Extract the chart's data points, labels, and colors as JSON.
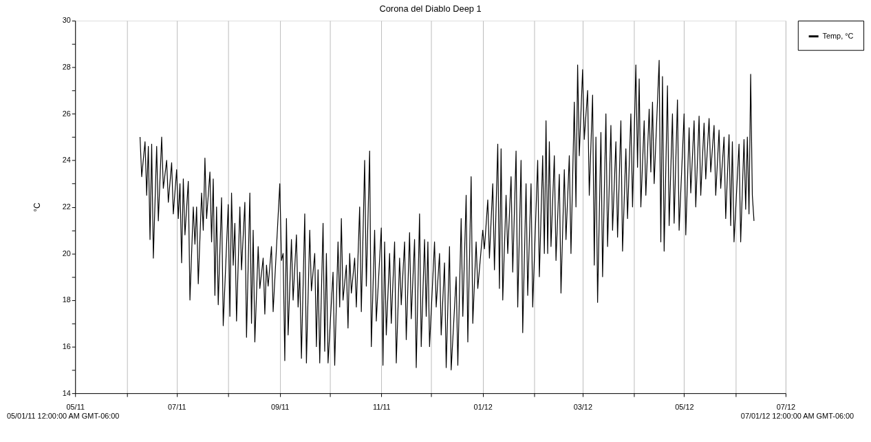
{
  "chart_data": {
    "type": "line",
    "title": "Corona del Diablo Deep 1",
    "ylabel": "°C",
    "x": [
      "2011-06-09",
      "2011-06-10",
      "2011-06-12",
      "2011-06-13",
      "2011-06-14",
      "2011-06-15",
      "2011-06-16",
      "2011-06-17",
      "2011-06-19",
      "2011-06-20",
      "2011-06-22",
      "2011-06-23",
      "2011-06-25",
      "2011-06-26",
      "2011-06-28",
      "2011-06-29",
      "2011-07-01",
      "2011-07-02",
      "2011-07-03",
      "2011-07-04",
      "2011-07-05",
      "2011-07-06",
      "2011-07-08",
      "2011-07-09",
      "2011-07-11",
      "2011-07-12",
      "2011-07-13",
      "2011-07-14",
      "2011-07-16",
      "2011-07-17",
      "2011-07-18",
      "2011-07-19",
      "2011-07-21",
      "2011-07-22",
      "2011-07-23",
      "2011-07-24",
      "2011-07-25",
      "2011-07-26",
      "2011-07-28",
      "2011-07-29",
      "2011-08-01",
      "2011-08-02",
      "2011-08-03",
      "2011-08-04",
      "2011-08-05",
      "2011-08-06",
      "2011-08-08",
      "2011-08-09",
      "2011-08-11",
      "2011-08-12",
      "2011-08-14",
      "2011-08-15",
      "2011-08-16",
      "2011-08-17",
      "2011-08-19",
      "2011-08-20",
      "2011-08-22",
      "2011-08-23",
      "2011-08-24",
      "2011-08-25",
      "2011-08-27",
      "2011-08-28",
      "2011-09-01",
      "2011-09-02",
      "2011-09-03",
      "2011-09-04",
      "2011-09-05",
      "2011-09-06",
      "2011-09-08",
      "2011-09-09",
      "2011-09-11",
      "2011-09-12",
      "2011-09-13",
      "2011-09-14",
      "2011-09-16",
      "2011-09-17",
      "2011-09-19",
      "2011-09-20",
      "2011-09-22",
      "2011-09-23",
      "2011-09-24",
      "2011-09-25",
      "2011-09-27",
      "2011-09-28",
      "2011-09-29",
      "2011-09-30",
      "2011-10-03",
      "2011-10-04",
      "2011-10-06",
      "2011-10-07",
      "2011-10-08",
      "2011-10-09",
      "2011-10-11",
      "2011-10-12",
      "2011-10-13",
      "2011-10-14",
      "2011-10-16",
      "2011-10-17",
      "2011-10-19",
      "2011-10-20",
      "2011-10-22",
      "2011-10-23",
      "2011-10-25",
      "2011-10-26",
      "2011-10-28",
      "2011-10-29",
      "2011-11-01",
      "2011-11-02",
      "2011-11-03",
      "2011-11-04",
      "2011-11-06",
      "2011-11-07",
      "2011-11-09",
      "2011-11-10",
      "2011-11-12",
      "2011-11-13",
      "2011-11-15",
      "2011-11-16",
      "2011-11-18",
      "2011-11-19",
      "2011-11-21",
      "2011-11-22",
      "2011-11-24",
      "2011-11-25",
      "2011-11-27",
      "2011-11-28",
      "2011-11-29",
      "2011-11-30",
      "2011-12-03",
      "2011-12-04",
      "2011-12-06",
      "2011-12-07",
      "2011-12-09",
      "2011-12-10",
      "2011-12-12",
      "2011-12-13",
      "2011-12-16",
      "2011-12-17",
      "2011-12-19",
      "2011-12-20",
      "2011-12-22",
      "2011-12-23",
      "2011-12-25",
      "2011-12-26",
      "2011-12-28",
      "2011-12-29",
      "2012-01-01",
      "2012-01-02",
      "2012-01-04",
      "2012-01-05",
      "2012-01-07",
      "2012-01-08",
      "2012-01-10",
      "2012-01-11",
      "2012-01-12",
      "2012-01-13",
      "2012-01-15",
      "2012-01-16",
      "2012-01-18",
      "2012-01-19",
      "2012-01-21",
      "2012-01-22",
      "2012-01-24",
      "2012-01-25",
      "2012-01-27",
      "2012-01-28",
      "2012-01-30",
      "2012-01-31",
      "2012-02-03",
      "2012-02-04",
      "2012-02-06",
      "2012-02-07",
      "2012-02-08",
      "2012-02-09",
      "2012-02-10",
      "2012-02-11",
      "2012-02-13",
      "2012-02-14",
      "2012-02-16",
      "2012-02-17",
      "2012-02-19",
      "2012-02-20",
      "2012-02-22",
      "2012-02-23",
      "2012-02-25",
      "2012-02-26",
      "2012-02-27",
      "2012-02-28",
      "2012-03-01",
      "2012-03-02",
      "2012-03-04",
      "2012-03-05",
      "2012-03-07",
      "2012-03-08",
      "2012-03-09",
      "2012-03-10",
      "2012-03-12",
      "2012-03-13",
      "2012-03-15",
      "2012-03-16",
      "2012-03-18",
      "2012-03-19",
      "2012-03-21",
      "2012-03-22",
      "2012-03-24",
      "2012-03-25",
      "2012-03-27",
      "2012-03-28",
      "2012-03-30",
      "2012-03-31",
      "2012-04-02",
      "2012-04-03",
      "2012-04-04",
      "2012-04-05",
      "2012-04-07",
      "2012-04-08",
      "2012-04-10",
      "2012-04-11",
      "2012-04-12",
      "2012-04-13",
      "2012-04-16",
      "2012-04-17",
      "2012-04-18",
      "2012-04-19",
      "2012-04-21",
      "2012-04-22",
      "2012-04-24",
      "2012-04-25",
      "2012-04-27",
      "2012-04-28",
      "2012-05-01",
      "2012-05-02",
      "2012-05-04",
      "2012-05-05",
      "2012-05-07",
      "2012-05-08",
      "2012-05-10",
      "2012-05-11",
      "2012-05-13",
      "2012-05-14",
      "2012-05-16",
      "2012-05-17",
      "2012-05-19",
      "2012-05-20",
      "2012-05-22",
      "2012-05-23",
      "2012-05-25",
      "2012-05-26",
      "2012-05-28",
      "2012-05-29",
      "2012-05-30",
      "2012-05-31",
      "2012-06-03",
      "2012-06-04",
      "2012-06-06",
      "2012-06-07",
      "2012-06-08",
      "2012-06-09",
      "2012-06-10",
      "2012-06-11",
      "2012-06-12"
    ],
    "series": [
      {
        "name": "Temp, °C",
        "color": "#000000",
        "values": [
          25.0,
          23.3,
          24.8,
          22.5,
          24.6,
          20.6,
          24.7,
          19.8,
          24.6,
          21.4,
          25.0,
          22.8,
          24.0,
          22.2,
          23.9,
          21.7,
          23.6,
          21.5,
          23.0,
          19.6,
          23.2,
          20.8,
          23.1,
          18.0,
          22.0,
          20.4,
          22.0,
          18.7,
          22.6,
          21.0,
          24.1,
          21.5,
          23.5,
          20.5,
          23.2,
          18.2,
          22.0,
          17.8,
          22.4,
          16.9,
          22.1,
          17.3,
          22.6,
          19.5,
          21.3,
          17.1,
          22.0,
          19.3,
          22.2,
          16.4,
          22.6,
          17.0,
          21.0,
          16.2,
          20.3,
          18.5,
          19.8,
          17.4,
          19.5,
          18.6,
          20.3,
          17.5,
          23.0,
          19.7,
          20.0,
          15.4,
          21.5,
          16.5,
          20.6,
          18.0,
          20.8,
          17.7,
          19.2,
          15.5,
          21.7,
          15.3,
          21.0,
          18.4,
          20.0,
          16.0,
          19.3,
          15.3,
          21.3,
          15.8,
          20.0,
          15.3,
          19.2,
          15.2,
          20.5,
          17.7,
          21.5,
          18.0,
          19.5,
          16.8,
          20.0,
          18.3,
          19.8,
          17.7,
          22.0,
          17.5,
          24.0,
          18.6,
          24.4,
          16.0,
          21.0,
          17.1,
          21.1,
          15.2,
          20.5,
          16.5,
          20.0,
          17.0,
          20.5,
          15.3,
          19.8,
          17.8,
          20.5,
          16.3,
          20.9,
          17.2,
          20.6,
          15.1,
          21.7,
          16.0,
          20.6,
          17.3,
          20.5,
          16.0,
          20.5,
          17.7,
          20.0,
          16.5,
          19.6,
          15.1,
          20.3,
          15.0,
          19.0,
          15.2,
          21.5,
          17.3,
          22.5,
          16.2,
          23.3,
          17.0,
          20.5,
          18.5,
          21.0,
          20.2,
          22.3,
          19.8,
          23.0,
          19.3,
          24.7,
          18.5,
          24.5,
          18.0,
          22.5,
          20.0,
          23.3,
          19.2,
          24.4,
          17.7,
          24.0,
          16.6,
          23.0,
          18.2,
          23.0,
          17.7,
          24.0,
          19.0,
          24.2,
          20.0,
          25.7,
          20.0,
          24.8,
          20.3,
          24.2,
          19.7,
          23.4,
          18.3,
          23.6,
          20.6,
          24.2,
          20.0,
          26.5,
          22.0,
          28.1,
          24.2,
          27.9,
          24.9,
          27.0,
          22.5,
          26.8,
          19.5,
          25.0,
          17.9,
          25.2,
          19.0,
          26.0,
          20.3,
          25.5,
          21.0,
          24.8,
          20.7,
          25.7,
          20.1,
          24.5,
          21.5,
          26.0,
          22.0,
          28.1,
          23.7,
          27.5,
          22.0,
          25.7,
          22.5,
          26.2,
          23.5,
          26.5,
          23.0,
          28.3,
          20.5,
          27.6,
          20.1,
          27.2,
          21.2,
          26.0,
          21.3,
          26.6,
          21.0,
          26.0,
          20.8,
          25.4,
          22.6,
          25.7,
          22.0,
          25.9,
          22.5,
          25.6,
          23.2,
          25.8,
          23.5,
          25.5,
          22.5,
          25.3,
          22.8,
          25.0,
          21.5,
          25.1,
          21.2,
          24.8,
          20.5,
          24.7,
          20.5,
          24.9,
          21.9,
          25.0,
          21.7,
          27.7,
          22.5,
          21.4
        ]
      }
    ],
    "xlim": [
      "2011-05",
      "2012-07"
    ],
    "xticks": [
      {
        "value": "2011-05",
        "label": "05/11"
      },
      {
        "value": "2011-06",
        "label": null
      },
      {
        "value": "2011-07",
        "label": "07/11"
      },
      {
        "value": "2011-08",
        "label": null
      },
      {
        "value": "2011-09",
        "label": "09/11"
      },
      {
        "value": "2011-10",
        "label": null
      },
      {
        "value": "2011-11",
        "label": "11/11"
      },
      {
        "value": "2011-12",
        "label": null
      },
      {
        "value": "2012-01",
        "label": "01/12"
      },
      {
        "value": "2012-02",
        "label": null
      },
      {
        "value": "2012-03",
        "label": "03/12"
      },
      {
        "value": "2012-04",
        "label": null
      },
      {
        "value": "2012-05",
        "label": "05/12"
      },
      {
        "value": "2012-06",
        "label": null
      },
      {
        "value": "2012-07",
        "label": "07/12"
      }
    ],
    "ylim": [
      14,
      30
    ],
    "yticks": [
      14,
      {
        "value": 15,
        "label": null
      },
      16,
      {
        "value": 17,
        "label": null
      },
      18,
      {
        "value": 19,
        "label": null
      },
      20,
      {
        "value": 21,
        "label": null
      },
      22,
      {
        "value": 23,
        "label": null
      },
      24,
      {
        "value": 25,
        "label": null
      },
      26,
      {
        "value": 27,
        "label": null
      },
      28,
      {
        "value": 29,
        "label": null
      },
      30
    ],
    "grid": "x",
    "legend": "top right",
    "line_style": "solid",
    "annotations": [
      "05/01/11 12:00:00 AM GMT-06:00",
      "07/01/12 12:00:00 AM GMT-06:00"
    ]
  }
}
